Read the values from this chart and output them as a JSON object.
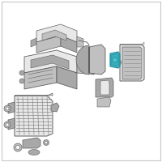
{
  "background_color": "#ffffff",
  "border_color": "#c8c8c8",
  "light_gray": "#c0c0c0",
  "mid_gray": "#a8a8a8",
  "dark_gray": "#888888",
  "darker_gray": "#606060",
  "white_ish": "#e8e8e8",
  "highlight_teal": "#3aadbb",
  "highlight_teal2": "#4ec4d0",
  "highlight_dark": "#1a8898",
  "figsize": [
    2.0,
    2.0
  ],
  "dpi": 100
}
